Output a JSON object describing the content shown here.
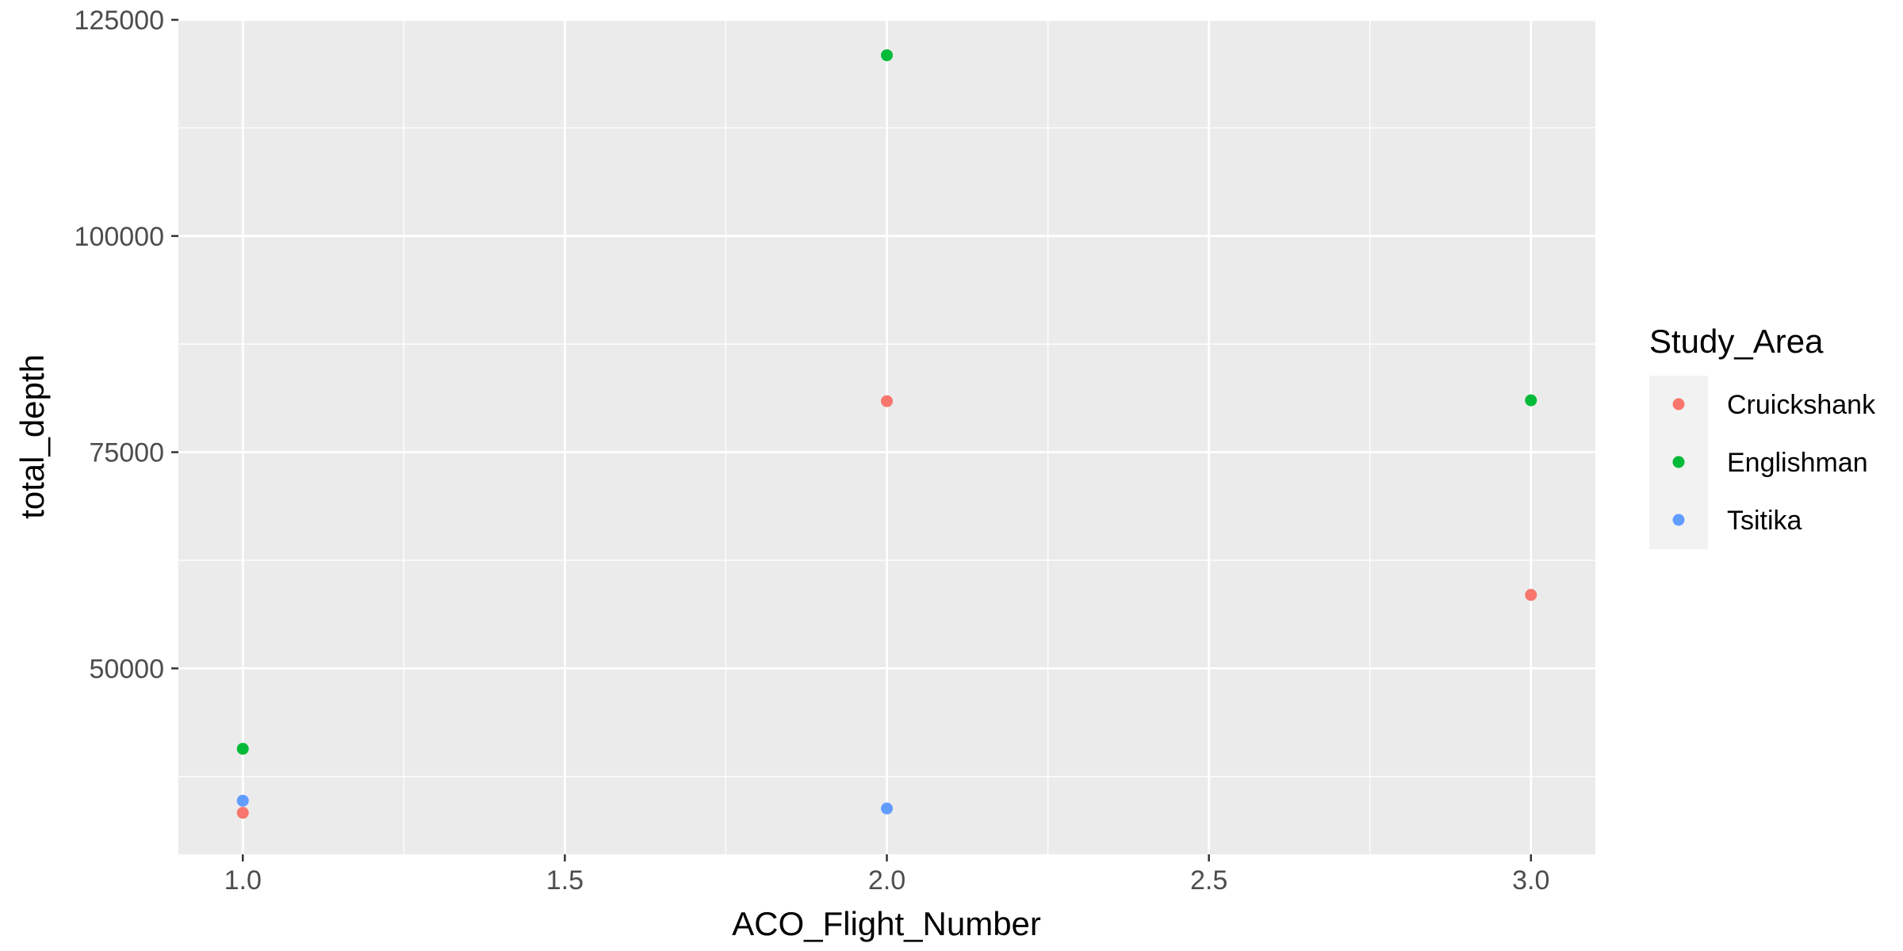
{
  "chart_data": {
    "type": "scatter",
    "title": "",
    "xlabel": "ACO_Flight_Number",
    "ylabel": "total_depth",
    "xlim": [
      0.9,
      3.1
    ],
    "ylim": [
      28500,
      125000
    ],
    "x_ticks": [
      1.0,
      1.5,
      2.0,
      2.5,
      3.0
    ],
    "x_tick_labels": [
      "1.0",
      "1.5",
      "2.0",
      "2.5",
      "3.0"
    ],
    "y_ticks": [
      50000,
      75000,
      100000,
      125000
    ],
    "y_tick_labels": [
      "50000",
      "75000",
      "100000",
      "125000"
    ],
    "grid": true,
    "legend": {
      "title": "Study_Area",
      "position": "right"
    },
    "series": [
      {
        "name": "Cruickshank",
        "color": "#F8766D",
        "points": [
          {
            "x": 1,
            "y": 33300
          },
          {
            "x": 2,
            "y": 80900
          },
          {
            "x": 3,
            "y": 58500
          }
        ]
      },
      {
        "name": "Englishman",
        "color": "#00BA38",
        "points": [
          {
            "x": 1,
            "y": 40700
          },
          {
            "x": 2,
            "y": 120900
          },
          {
            "x": 3,
            "y": 81000
          }
        ]
      },
      {
        "name": "Tsitika",
        "color": "#619CFF",
        "points": [
          {
            "x": 1,
            "y": 34700
          },
          {
            "x": 2,
            "y": 33800
          }
        ]
      }
    ]
  }
}
